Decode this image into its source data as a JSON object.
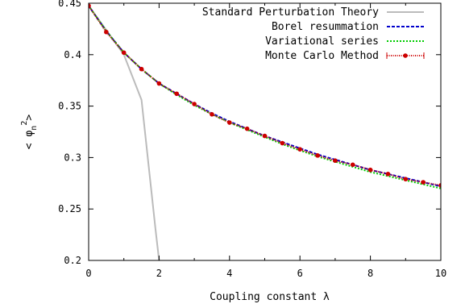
{
  "chart_data": {
    "type": "line",
    "xlabel": "Coupling constant λ",
    "ylabel": "< φn² >",
    "xlim": [
      0,
      10
    ],
    "ylim": [
      0.2,
      0.45
    ],
    "xticks": [
      0,
      2,
      4,
      6,
      8,
      10
    ],
    "yticks": [
      0.2,
      0.25,
      0.3,
      0.35,
      0.4,
      0.45
    ],
    "legend_position": "top-right",
    "grid": false,
    "series": [
      {
        "name": "Standard Perturbation Theory",
        "color": "#bbbbbb",
        "style": "solid",
        "x": [
          0,
          0.5,
          1,
          1.5,
          1.9,
          2.0
        ],
        "y": [
          0.4475,
          0.424,
          0.4,
          0.356,
          0.23,
          0.2
        ]
      },
      {
        "name": "Borel resummation",
        "color": "#0000cc",
        "style": "dashed",
        "x": [
          0,
          0.5,
          1,
          1.5,
          2,
          2.5,
          3,
          3.5,
          4,
          4.5,
          5,
          5.5,
          6,
          6.5,
          7,
          7.5,
          8,
          8.5,
          9,
          9.5,
          10
        ],
        "y": [
          0.4475,
          0.423,
          0.402,
          0.386,
          0.372,
          0.362,
          0.352,
          0.343,
          0.335,
          0.328,
          0.321,
          0.315,
          0.309,
          0.303,
          0.298,
          0.293,
          0.288,
          0.284,
          0.28,
          0.276,
          0.272
        ]
      },
      {
        "name": "Variational series",
        "color": "#00cc00",
        "style": "dotted",
        "x": [
          0,
          0.5,
          1,
          1.5,
          2,
          2.5,
          3,
          3.5,
          4,
          4.5,
          5,
          5.5,
          6,
          6.5,
          7,
          7.5,
          8,
          8.5,
          9,
          9.5,
          10
        ],
        "y": [
          0.4475,
          0.423,
          0.402,
          0.386,
          0.372,
          0.361,
          0.351,
          0.342,
          0.334,
          0.327,
          0.32,
          0.313,
          0.307,
          0.301,
          0.296,
          0.291,
          0.286,
          0.282,
          0.278,
          0.274,
          0.27
        ]
      },
      {
        "name": "Monte Carlo Method",
        "color": "#cc0000",
        "style": "points-errorbars",
        "x": [
          0,
          0.5,
          1,
          1.5,
          2,
          2.5,
          3,
          3.5,
          4,
          4.5,
          5,
          5.5,
          6,
          6.5,
          7,
          7.5,
          8,
          8.5,
          9,
          9.5,
          10
        ],
        "y": [
          0.4475,
          0.422,
          0.402,
          0.386,
          0.372,
          0.362,
          0.352,
          0.342,
          0.334,
          0.328,
          0.321,
          0.314,
          0.308,
          0.302,
          0.297,
          0.293,
          0.288,
          0.284,
          0.279,
          0.276,
          0.273
        ]
      }
    ]
  }
}
